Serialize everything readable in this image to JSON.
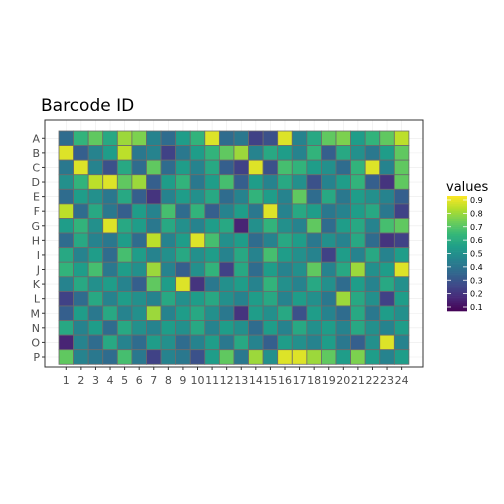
{
  "chart_data": {
    "type": "heatmap",
    "title": "Barcode ID",
    "xlabel": "",
    "ylabel": "",
    "x_categories": [
      "1",
      "2",
      "3",
      "4",
      "5",
      "6",
      "7",
      "8",
      "9",
      "10",
      "11",
      "12",
      "13",
      "14",
      "15",
      "16",
      "17",
      "18",
      "19",
      "20",
      "21",
      "22",
      "23",
      "24"
    ],
    "y_categories": [
      "A",
      "B",
      "C",
      "D",
      "E",
      "F",
      "G",
      "H",
      "I",
      "J",
      "K",
      "L",
      "M",
      "N",
      "O",
      "P"
    ],
    "values": [
      [
        0.35,
        0.65,
        0.75,
        0.6,
        0.85,
        0.8,
        0.45,
        0.35,
        0.55,
        0.65,
        0.95,
        0.35,
        0.4,
        0.2,
        0.25,
        0.95,
        0.45,
        0.6,
        0.75,
        0.8,
        0.55,
        0.65,
        0.75,
        0.9
      ],
      [
        0.95,
        0.3,
        0.45,
        0.55,
        0.9,
        0.4,
        0.45,
        0.2,
        0.4,
        0.55,
        0.65,
        0.75,
        0.85,
        0.45,
        0.6,
        0.55,
        0.45,
        0.65,
        0.3,
        0.6,
        0.5,
        0.4,
        0.55,
        0.75
      ],
      [
        0.4,
        0.95,
        0.45,
        0.25,
        0.6,
        0.35,
        0.75,
        0.35,
        0.55,
        0.45,
        0.6,
        0.3,
        0.2,
        0.95,
        0.25,
        0.7,
        0.65,
        0.55,
        0.5,
        0.35,
        0.65,
        0.95,
        0.45,
        0.75
      ],
      [
        0.5,
        0.65,
        0.9,
        0.95,
        0.75,
        0.85,
        0.3,
        0.55,
        0.65,
        0.4,
        0.55,
        0.7,
        0.3,
        0.55,
        0.45,
        0.6,
        0.5,
        0.25,
        0.45,
        0.55,
        0.65,
        0.3,
        0.15,
        0.75
      ],
      [
        0.35,
        0.55,
        0.5,
        0.4,
        0.6,
        0.3,
        0.15,
        0.45,
        0.55,
        0.5,
        0.6,
        0.35,
        0.45,
        0.65,
        0.55,
        0.45,
        0.75,
        0.35,
        0.6,
        0.4,
        0.55,
        0.5,
        0.45,
        0.3
      ],
      [
        0.9,
        0.35,
        0.6,
        0.4,
        0.3,
        0.55,
        0.45,
        0.7,
        0.35,
        0.65,
        0.3,
        0.45,
        0.55,
        0.4,
        0.95,
        0.45,
        0.6,
        0.55,
        0.4,
        0.45,
        0.55,
        0.6,
        0.4,
        0.2
      ],
      [
        0.55,
        0.65,
        0.5,
        0.95,
        0.6,
        0.55,
        0.4,
        0.6,
        0.5,
        0.45,
        0.55,
        0.6,
        0.1,
        0.5,
        0.65,
        0.5,
        0.45,
        0.75,
        0.35,
        0.55,
        0.6,
        0.45,
        0.7,
        0.75
      ],
      [
        0.35,
        0.6,
        0.45,
        0.4,
        0.55,
        0.35,
        0.9,
        0.45,
        0.55,
        0.95,
        0.7,
        0.5,
        0.55,
        0.35,
        0.45,
        0.6,
        0.55,
        0.4,
        0.5,
        0.45,
        0.6,
        0.35,
        0.15,
        0.2
      ],
      [
        0.6,
        0.45,
        0.55,
        0.35,
        0.7,
        0.55,
        0.45,
        0.5,
        0.6,
        0.5,
        0.55,
        0.45,
        0.6,
        0.45,
        0.7,
        0.55,
        0.5,
        0.45,
        0.2,
        0.55,
        0.45,
        0.6,
        0.45,
        0.55
      ],
      [
        0.65,
        0.55,
        0.7,
        0.4,
        0.55,
        0.5,
        0.85,
        0.45,
        0.3,
        0.5,
        0.65,
        0.2,
        0.6,
        0.35,
        0.55,
        0.45,
        0.5,
        0.75,
        0.45,
        0.6,
        0.85,
        0.5,
        0.55,
        0.95
      ],
      [
        0.45,
        0.6,
        0.5,
        0.55,
        0.45,
        0.3,
        0.75,
        0.55,
        0.95,
        0.15,
        0.4,
        0.5,
        0.55,
        0.45,
        0.65,
        0.5,
        0.45,
        0.6,
        0.5,
        0.35,
        0.55,
        0.45,
        0.6,
        0.5
      ],
      [
        0.2,
        0.35,
        0.6,
        0.45,
        0.55,
        0.5,
        0.45,
        0.6,
        0.5,
        0.55,
        0.6,
        0.5,
        0.45,
        0.55,
        0.6,
        0.45,
        0.55,
        0.5,
        0.4,
        0.85,
        0.6,
        0.5,
        0.2,
        0.55
      ],
      [
        0.3,
        0.55,
        0.4,
        0.6,
        0.45,
        0.5,
        0.85,
        0.45,
        0.55,
        0.6,
        0.5,
        0.4,
        0.15,
        0.55,
        0.5,
        0.6,
        0.25,
        0.55,
        0.45,
        0.35,
        0.6,
        0.4,
        0.55,
        0.5
      ],
      [
        0.6,
        0.45,
        0.55,
        0.35,
        0.6,
        0.5,
        0.45,
        0.55,
        0.5,
        0.6,
        0.45,
        0.55,
        0.5,
        0.35,
        0.55,
        0.45,
        0.6,
        0.5,
        0.55,
        0.45,
        0.6,
        0.5,
        0.45,
        0.55
      ],
      [
        0.1,
        0.45,
        0.35,
        0.6,
        0.45,
        0.35,
        0.55,
        0.5,
        0.35,
        0.45,
        0.55,
        0.4,
        0.6,
        0.45,
        0.3,
        0.55,
        0.5,
        0.45,
        0.55,
        0.4,
        0.3,
        0.5,
        0.95,
        0.45
      ],
      [
        0.75,
        0.45,
        0.4,
        0.35,
        0.7,
        0.4,
        0.2,
        0.45,
        0.4,
        0.25,
        0.55,
        0.75,
        0.4,
        0.85,
        0.5,
        0.95,
        0.95,
        0.85,
        0.75,
        0.55,
        0.8,
        0.55,
        0.45,
        0.55
      ]
    ],
    "colorscale": "viridis",
    "grid": true,
    "legend": {
      "title": "values",
      "placement": "right",
      "labels": [
        "0.9",
        "0.8",
        "0.7",
        "0.6",
        "0.5",
        "0.4",
        "0.3",
        "0.2",
        "0.1"
      ]
    }
  },
  "colors": {
    "viridis": [
      "#440154",
      "#482878",
      "#3e4989",
      "#31688e",
      "#26828e",
      "#1f9e89",
      "#35b779",
      "#6ece58",
      "#b5de2b",
      "#fde725"
    ],
    "cell_border": "#6b6b6b",
    "panel_border": "#333333",
    "grid_line": "#ebebeb"
  }
}
